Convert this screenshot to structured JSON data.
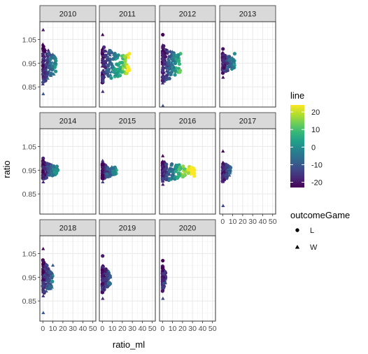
{
  "chart_data": {
    "type": "scatter",
    "facet_by": "year",
    "facets": [
      {
        "label": "2010",
        "x_max": 13,
        "y_min": 0.82,
        "y_max": 1.09,
        "center": 0.945,
        "spread": 0.085,
        "tip_ratio": 0.96
      },
      {
        "label": "2011",
        "x_max": 27,
        "y_min": 0.83,
        "y_max": 1.07,
        "center": 0.945,
        "spread": 0.08,
        "tip_ratio": 0.99
      },
      {
        "label": "2012",
        "x_max": 18,
        "y_min": 0.77,
        "y_max": 1.07,
        "center": 0.945,
        "spread": 0.085,
        "tip_ratio": 0.99
      },
      {
        "label": "2013",
        "x_max": 12,
        "y_min": 0.89,
        "y_max": 1.01,
        "center": 0.95,
        "spread": 0.045,
        "tip_ratio": 0.99
      },
      {
        "label": "2014",
        "x_max": 15,
        "y_min": 0.9,
        "y_max": 1.0,
        "center": 0.95,
        "spread": 0.04,
        "tip_ratio": 0.95
      },
      {
        "label": "2015",
        "x_max": 14,
        "y_min": 0.9,
        "y_max": 0.99,
        "center": 0.945,
        "spread": 0.035,
        "tip_ratio": 0.95
      },
      {
        "label": "2016",
        "x_max": 32,
        "y_min": 0.89,
        "y_max": 1.01,
        "center": 0.945,
        "spread": 0.045,
        "tip_ratio": 0.95
      },
      {
        "label": "2017",
        "x_max": 8,
        "y_min": 0.8,
        "y_max": 1.03,
        "center": 0.945,
        "spread": 0.045,
        "tip_ratio": 0.95
      },
      {
        "label": "2018",
        "x_max": 10,
        "y_min": 0.8,
        "y_max": 1.07,
        "center": 0.945,
        "spread": 0.08,
        "tip_ratio": 1.0
      },
      {
        "label": "2019",
        "x_max": 8,
        "y_min": 0.86,
        "y_max": 1.04,
        "center": 0.945,
        "spread": 0.06,
        "tip_ratio": 0.95
      },
      {
        "label": "2020",
        "x_max": 3,
        "y_min": 0.86,
        "y_max": 1.02,
        "center": 0.945,
        "spread": 0.055,
        "tip_ratio": 0.95
      }
    ],
    "xlabel": "ratio_ml",
    "ylabel": "ratio",
    "xlim": [
      -3,
      53
    ],
    "ylim": [
      0.765,
      1.125
    ],
    "x_ticks": [
      0,
      10,
      20,
      30,
      40,
      50
    ],
    "x_tick_labels": [
      "0",
      "10",
      "20",
      "30",
      "40",
      "50"
    ],
    "y_ticks": [
      0.85,
      0.95,
      1.05
    ],
    "y_tick_labels": [
      "0.85",
      "0.95",
      "1.05"
    ],
    "color": {
      "variable": "line",
      "range": [
        -23,
        24
      ],
      "ticks": [
        20,
        10,
        0,
        -10,
        -20
      ],
      "tick_labels": [
        "20",
        "10",
        "0",
        "-10",
        "-20"
      ],
      "palette": [
        "#440154",
        "#482878",
        "#3e4989",
        "#31688e",
        "#26828e",
        "#1f9e89",
        "#35b779",
        "#6ece58",
        "#b5de2b",
        "#fde725"
      ]
    },
    "shape": {
      "variable": "outcomeGame",
      "entries": [
        {
          "label": "L",
          "symbol": "circle"
        },
        {
          "label": "W",
          "symbol": "triangle"
        }
      ]
    },
    "grid": true,
    "legend_position": "right"
  }
}
